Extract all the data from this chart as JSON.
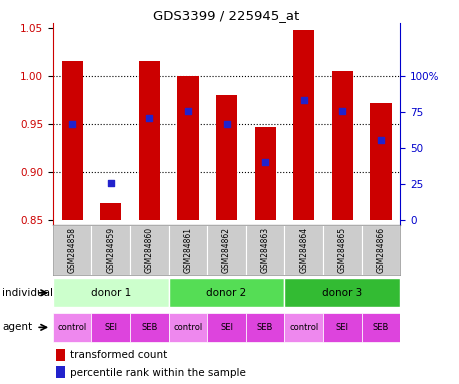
{
  "title": "GDS3399 / 225945_at",
  "samples": [
    "GSM284858",
    "GSM284859",
    "GSM284860",
    "GSM284861",
    "GSM284862",
    "GSM284863",
    "GSM284864",
    "GSM284865",
    "GSM284866"
  ],
  "transformed_count": [
    1.015,
    0.868,
    1.015,
    1.0,
    0.98,
    0.947,
    1.048,
    1.005,
    0.972
  ],
  "percentile_rank": [
    0.95,
    0.888,
    0.956,
    0.963,
    0.95,
    0.91,
    0.975,
    0.963,
    0.933
  ],
  "bar_bottom": 0.85,
  "ylim": [
    0.845,
    1.055
  ],
  "yticks_left": [
    0.85,
    0.9,
    0.95,
    1.0,
    1.05
  ],
  "yticks_right": [
    0,
    25,
    50,
    75,
    100
  ],
  "yticks_right_vals": [
    0.85,
    0.8875,
    0.925,
    0.9625,
    1.0
  ],
  "bar_color": "#cc0000",
  "dot_color": "#2222cc",
  "bg_color": "#ffffff",
  "individual_labels": [
    "donor 1",
    "donor 2",
    "donor 3"
  ],
  "individual_colors": [
    "#ccffcc",
    "#55dd55",
    "#33bb33"
  ],
  "agent_labels": [
    "control",
    "SEI",
    "SEB",
    "control",
    "SEI",
    "SEB",
    "control",
    "SEI",
    "SEB"
  ],
  "agent_color_light": "#ee88ee",
  "agent_color_dark": "#dd44dd",
  "legend_red": "transformed count",
  "legend_blue": "percentile rank within the sample",
  "left_label_color": "#cc0000",
  "right_label_color": "#0000cc",
  "bar_width": 0.55,
  "sample_box_color": "#cccccc",
  "grid_yticks": [
    1.0,
    0.95,
    0.9
  ]
}
